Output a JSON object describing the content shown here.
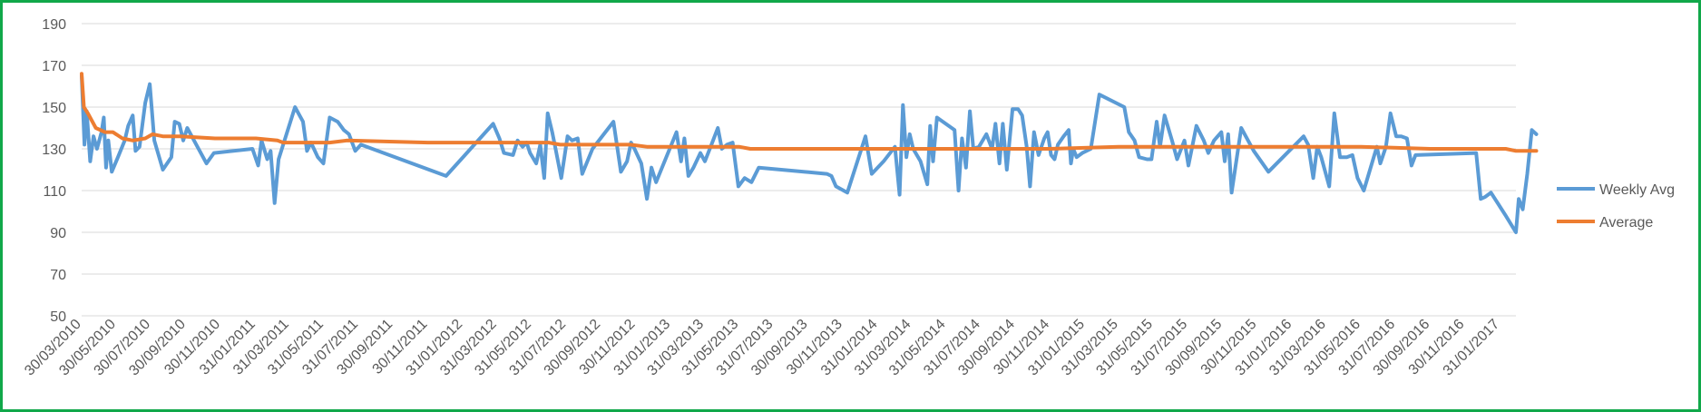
{
  "chart_data": {
    "type": "line",
    "title": "",
    "xlabel": "",
    "ylabel": "",
    "ylim": [
      50,
      190
    ],
    "yticks": [
      50,
      70,
      90,
      110,
      130,
      150,
      170,
      190
    ],
    "xlim": [
      "30/03/2010",
      "28/02/2017"
    ],
    "xticks": [
      "30/03/2010",
      "30/05/2010",
      "30/07/2010",
      "30/09/2010",
      "30/11/2010",
      "31/01/2011",
      "31/03/2011",
      "31/05/2011",
      "31/07/2011",
      "30/09/2011",
      "30/11/2011",
      "31/01/2012",
      "31/03/2012",
      "31/05/2012",
      "31/07/2012",
      "30/09/2012",
      "30/11/2012",
      "31/01/2013",
      "31/03/2013",
      "31/05/2013",
      "31/07/2013",
      "30/09/2013",
      "30/11/2013",
      "31/01/2014",
      "31/03/2014",
      "31/05/2014",
      "31/07/2014",
      "30/09/2014",
      "30/11/2014",
      "31/01/2015",
      "31/03/2015",
      "31/05/2015",
      "31/07/2015",
      "30/09/2015",
      "30/11/2015",
      "31/01/2016",
      "31/03/2016",
      "31/05/2016",
      "31/07/2016",
      "30/09/2016",
      "30/11/2016",
      "31/01/2017"
    ],
    "grid": true,
    "legend": "right",
    "series": [
      {
        "name": "Weekly Avg",
        "color": "#5b9bd5",
        "points": [
          [
            "2010-03-30",
            165
          ],
          [
            "2010-04-04",
            132
          ],
          [
            "2010-04-08",
            148
          ],
          [
            "2010-04-14",
            124
          ],
          [
            "2010-04-20",
            136
          ],
          [
            "2010-04-26",
            130
          ],
          [
            "2010-05-04",
            138
          ],
          [
            "2010-05-08",
            145
          ],
          [
            "2010-05-12",
            121
          ],
          [
            "2010-05-16",
            134
          ],
          [
            "2010-05-22",
            119
          ],
          [
            "2010-06-02",
            126
          ],
          [
            "2010-06-14",
            134
          ],
          [
            "2010-06-20",
            141
          ],
          [
            "2010-06-28",
            146
          ],
          [
            "2010-07-03",
            129
          ],
          [
            "2010-07-10",
            131
          ],
          [
            "2010-07-20",
            152
          ],
          [
            "2010-07-28",
            161
          ],
          [
            "2010-08-05",
            134
          ],
          [
            "2010-08-20",
            120
          ],
          [
            "2010-09-04",
            126
          ],
          [
            "2010-09-10",
            143
          ],
          [
            "2010-09-18",
            142
          ],
          [
            "2010-09-25",
            134
          ],
          [
            "2010-10-02",
            140
          ],
          [
            "2010-10-10",
            136
          ],
          [
            "2010-10-20",
            131
          ],
          [
            "2010-11-05",
            123
          ],
          [
            "2010-11-18",
            128
          ],
          [
            "2011-01-25",
            130
          ],
          [
            "2011-02-04",
            122
          ],
          [
            "2011-02-10",
            134
          ],
          [
            "2011-02-20",
            125
          ],
          [
            "2011-02-26",
            129
          ],
          [
            "2011-03-05",
            104
          ],
          [
            "2011-03-12",
            125
          ],
          [
            "2011-04-10",
            150
          ],
          [
            "2011-04-24",
            143
          ],
          [
            "2011-05-01",
            129
          ],
          [
            "2011-05-08",
            133
          ],
          [
            "2011-05-20",
            126
          ],
          [
            "2011-05-30",
            123
          ],
          [
            "2011-06-10",
            145
          ],
          [
            "2011-06-24",
            143
          ],
          [
            "2011-07-05",
            139
          ],
          [
            "2011-07-14",
            137
          ],
          [
            "2011-07-25",
            129
          ],
          [
            "2011-08-04",
            132
          ],
          [
            "2012-01-01",
            117
          ],
          [
            "2012-03-24",
            142
          ],
          [
            "2012-04-04",
            135
          ],
          [
            "2012-04-12",
            128
          ],
          [
            "2012-04-28",
            127
          ],
          [
            "2012-05-06",
            134
          ],
          [
            "2012-05-15",
            131
          ],
          [
            "2012-05-22",
            133
          ],
          [
            "2012-05-28",
            128
          ],
          [
            "2012-06-08",
            123
          ],
          [
            "2012-06-15",
            132
          ],
          [
            "2012-06-22",
            116
          ],
          [
            "2012-06-28",
            147
          ],
          [
            "2012-07-06",
            138
          ],
          [
            "2012-07-12",
            130
          ],
          [
            "2012-07-22",
            116
          ],
          [
            "2012-08-02",
            136
          ],
          [
            "2012-08-10",
            134
          ],
          [
            "2012-08-20",
            135
          ],
          [
            "2012-08-28",
            118
          ],
          [
            "2012-09-15",
            130
          ],
          [
            "2012-10-22",
            143
          ],
          [
            "2012-11-04",
            119
          ],
          [
            "2012-11-15",
            124
          ],
          [
            "2012-11-22",
            133
          ],
          [
            "2012-11-28",
            130
          ],
          [
            "2012-12-10",
            123
          ],
          [
            "2012-12-20",
            106
          ],
          [
            "2012-12-28",
            121
          ],
          [
            "2013-01-05",
            114
          ],
          [
            "2013-02-10",
            138
          ],
          [
            "2013-02-18",
            124
          ],
          [
            "2013-02-24",
            135
          ],
          [
            "2013-03-03",
            117
          ],
          [
            "2013-03-12",
            121
          ],
          [
            "2013-03-24",
            128
          ],
          [
            "2013-04-01",
            124
          ],
          [
            "2013-04-14",
            133
          ],
          [
            "2013-04-24",
            140
          ],
          [
            "2013-05-01",
            130
          ],
          [
            "2013-05-10",
            132
          ],
          [
            "2013-05-20",
            133
          ],
          [
            "2013-05-30",
            112
          ],
          [
            "2013-06-10",
            116
          ],
          [
            "2013-06-22",
            114
          ],
          [
            "2013-07-05",
            121
          ],
          [
            "2013-11-02",
            118
          ],
          [
            "2013-11-10",
            117
          ],
          [
            "2013-11-18",
            112
          ],
          [
            "2013-12-08",
            109
          ],
          [
            "2014-01-09",
            136
          ],
          [
            "2014-01-20",
            118
          ],
          [
            "2014-02-10",
            124
          ],
          [
            "2014-03-02",
            131
          ],
          [
            "2014-03-10",
            108
          ],
          [
            "2014-03-16",
            151
          ],
          [
            "2014-03-22",
            126
          ],
          [
            "2014-03-28",
            137
          ],
          [
            "2014-04-03",
            130
          ],
          [
            "2014-04-16",
            124
          ],
          [
            "2014-04-28",
            113
          ],
          [
            "2014-05-03",
            141
          ],
          [
            "2014-05-08",
            124
          ],
          [
            "2014-05-15",
            145
          ],
          [
            "2014-06-15",
            139
          ],
          [
            "2014-06-22",
            110
          ],
          [
            "2014-06-28",
            135
          ],
          [
            "2014-07-05",
            121
          ],
          [
            "2014-07-12",
            148
          ],
          [
            "2014-07-18",
            130
          ],
          [
            "2014-07-28",
            131
          ],
          [
            "2014-08-10",
            137
          ],
          [
            "2014-08-20",
            130
          ],
          [
            "2014-08-26",
            142
          ],
          [
            "2014-09-02",
            123
          ],
          [
            "2014-09-08",
            142
          ],
          [
            "2014-09-15",
            120
          ],
          [
            "2014-09-25",
            149
          ],
          [
            "2014-10-05",
            149
          ],
          [
            "2014-10-12",
            146
          ],
          [
            "2014-10-20",
            131
          ],
          [
            "2014-10-26",
            112
          ],
          [
            "2014-11-02",
            138
          ],
          [
            "2014-11-10",
            127
          ],
          [
            "2014-11-20",
            135
          ],
          [
            "2014-11-26",
            138
          ],
          [
            "2014-12-02",
            127
          ],
          [
            "2014-12-08",
            125
          ],
          [
            "2014-12-14",
            132
          ],
          [
            "2014-12-24",
            136
          ],
          [
            "2015-01-02",
            139
          ],
          [
            "2015-01-06",
            123
          ],
          [
            "2015-01-10",
            130
          ],
          [
            "2015-01-16",
            126
          ],
          [
            "2015-01-26",
            128
          ],
          [
            "2015-02-10",
            130
          ],
          [
            "2015-02-25",
            156
          ],
          [
            "2015-04-10",
            150
          ],
          [
            "2015-04-18",
            138
          ],
          [
            "2015-04-28",
            134
          ],
          [
            "2015-05-06",
            126
          ],
          [
            "2015-05-20",
            125
          ],
          [
            "2015-05-28",
            125
          ],
          [
            "2015-06-06",
            143
          ],
          [
            "2015-06-12",
            131
          ],
          [
            "2015-06-20",
            146
          ],
          [
            "2015-07-03",
            134
          ],
          [
            "2015-07-12",
            125
          ],
          [
            "2015-07-25",
            134
          ],
          [
            "2015-08-01",
            122
          ],
          [
            "2015-08-15",
            141
          ],
          [
            "2015-08-28",
            134
          ],
          [
            "2015-09-05",
            128
          ],
          [
            "2015-09-15",
            134
          ],
          [
            "2015-09-28",
            138
          ],
          [
            "2015-10-04",
            124
          ],
          [
            "2015-10-10",
            137
          ],
          [
            "2015-10-16",
            109
          ],
          [
            "2015-11-02",
            140
          ],
          [
            "2015-11-24",
            129
          ],
          [
            "2015-12-20",
            119
          ],
          [
            "2016-02-20",
            136
          ],
          [
            "2016-02-28",
            132
          ],
          [
            "2016-03-08",
            116
          ],
          [
            "2016-03-15",
            131
          ],
          [
            "2016-03-22",
            126
          ],
          [
            "2016-04-05",
            112
          ],
          [
            "2016-04-14",
            147
          ],
          [
            "2016-04-24",
            126
          ],
          [
            "2016-05-06",
            126
          ],
          [
            "2016-05-16",
            127
          ],
          [
            "2016-05-25",
            116
          ],
          [
            "2016-06-05",
            110
          ],
          [
            "2016-06-28",
            131
          ],
          [
            "2016-07-04",
            123
          ],
          [
            "2016-07-14",
            131
          ],
          [
            "2016-07-22",
            147
          ],
          [
            "2016-08-01",
            136
          ],
          [
            "2016-08-10",
            136
          ],
          [
            "2016-08-20",
            135
          ],
          [
            "2016-08-28",
            122
          ],
          [
            "2016-09-04",
            127
          ],
          [
            "2016-12-20",
            128
          ],
          [
            "2016-12-28",
            106
          ],
          [
            "2017-01-05",
            107
          ],
          [
            "2017-01-15",
            109
          ],
          [
            "2017-02-10",
            98
          ],
          [
            "2017-02-28",
            90
          ],
          [
            "2017-03-05",
            106
          ],
          [
            "2017-03-12",
            101
          ],
          [
            "2017-03-20",
            118
          ],
          [
            "2017-03-28",
            139
          ],
          [
            "2017-04-05",
            137
          ]
        ]
      },
      {
        "name": "Average",
        "color": "#ed7d31",
        "points": [
          [
            "2010-03-30",
            166
          ],
          [
            "2010-04-03",
            150
          ],
          [
            "2010-04-10",
            147
          ],
          [
            "2010-04-24",
            140
          ],
          [
            "2010-05-10",
            138
          ],
          [
            "2010-05-24",
            138
          ],
          [
            "2010-06-10",
            135
          ],
          [
            "2010-06-28",
            134
          ],
          [
            "2010-07-20",
            135
          ],
          [
            "2010-08-02",
            137
          ],
          [
            "2010-08-20",
            136
          ],
          [
            "2010-09-20",
            136
          ],
          [
            "2010-11-20",
            135
          ],
          [
            "2011-01-31",
            135
          ],
          [
            "2011-03-10",
            134
          ],
          [
            "2011-03-20",
            133
          ],
          [
            "2011-04-10",
            133
          ],
          [
            "2011-06-10",
            133
          ],
          [
            "2011-07-10",
            134
          ],
          [
            "2011-11-30",
            133
          ],
          [
            "2012-06-30",
            133
          ],
          [
            "2012-07-20",
            132
          ],
          [
            "2012-10-10",
            132
          ],
          [
            "2012-11-20",
            132
          ],
          [
            "2012-12-20",
            131
          ],
          [
            "2013-05-31",
            131
          ],
          [
            "2013-06-20",
            130
          ],
          [
            "2013-11-30",
            130
          ],
          [
            "2014-05-31",
            130
          ],
          [
            "2014-11-30",
            130
          ],
          [
            "2015-03-31",
            131
          ],
          [
            "2015-11-30",
            131
          ],
          [
            "2016-05-31",
            131
          ],
          [
            "2016-09-30",
            130
          ],
          [
            "2016-12-20",
            130
          ],
          [
            "2017-02-10",
            130
          ],
          [
            "2017-02-28",
            129
          ],
          [
            "2017-04-05",
            129
          ]
        ]
      }
    ]
  }
}
